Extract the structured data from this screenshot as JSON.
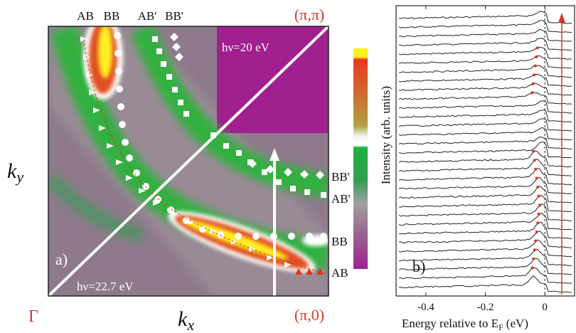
{
  "panel_a": {
    "label": "a)",
    "top_labels": [
      "AB",
      "BB",
      "AB'",
      "BB'"
    ],
    "corner_top_right": "(π,π)",
    "photon_energy_top": "hν=20 eV",
    "right_labels": [
      "BB'",
      "AB'",
      "BB",
      "AB"
    ],
    "photon_energy_bottom": "hν=22.7 eV",
    "corner_bottom_left": "Γ",
    "corner_bottom_right": "(π,0)",
    "x_label": {
      "symbol": "k",
      "subscript": "x"
    },
    "y_label": {
      "symbol": "k",
      "subscript": "y"
    }
  },
  "panel_b": {
    "label": "b)",
    "y_label": "Intensity (arb. units)",
    "x_label": {
      "text": "Energy relative to E",
      "subscript": "F",
      "unit": "(eV)"
    },
    "xlim": [
      -0.5,
      0.1
    ],
    "xticks": [
      -0.4,
      -0.2,
      0
    ]
  }
}
